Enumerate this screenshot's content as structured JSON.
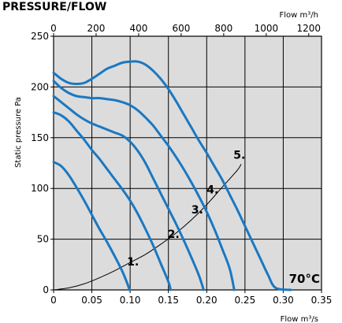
{
  "chart_data": {
    "type": "line",
    "title": "PRESSURE/FLOW",
    "temperature_label": "70°C",
    "ylabel": "Static pressure Pa",
    "xlabel_bottom": "Flow m³/s",
    "xlabel_top": "Flow m³/h",
    "xlim": [
      0,
      0.35
    ],
    "ylim": [
      0,
      250
    ],
    "xlim_top": [
      0,
      1260
    ],
    "grid": true,
    "background_color": "#dcdcdc",
    "curve_color": "#1a78c2",
    "system_curve_color": "#000000",
    "x_ticks": [
      "0",
      "0.05",
      "0.10",
      "0.15",
      "0.20",
      "0.25",
      "0.30",
      "0.35"
    ],
    "x_tick_values": [
      0,
      0.05,
      0.1,
      0.15,
      0.2,
      0.25,
      0.3,
      0.35
    ],
    "y_ticks": [
      "0",
      "50",
      "100",
      "150",
      "200",
      "250"
    ],
    "y_tick_values": [
      0,
      50,
      100,
      150,
      200,
      250
    ],
    "x_top_ticks": [
      "0",
      "200",
      "400",
      "600",
      "800",
      "1000",
      "1200"
    ],
    "x_top_tick_values": [
      0,
      200,
      400,
      600,
      800,
      1000,
      1200
    ],
    "series": [
      {
        "name": "1.",
        "label_at": [
          0.096,
          28
        ],
        "points": [
          [
            0,
            126
          ],
          [
            0.01,
            122
          ],
          [
            0.02,
            113
          ],
          [
            0.03,
            101
          ],
          [
            0.04,
            88
          ],
          [
            0.05,
            74
          ],
          [
            0.06,
            60
          ],
          [
            0.07,
            47
          ],
          [
            0.08,
            33
          ],
          [
            0.09,
            18
          ],
          [
            0.097,
            5
          ],
          [
            0.099,
            0
          ]
        ]
      },
      {
        "name": "2.",
        "label_at": [
          0.149,
          55
        ],
        "points": [
          [
            0,
            175
          ],
          [
            0.01,
            172
          ],
          [
            0.02,
            166
          ],
          [
            0.03,
            157
          ],
          [
            0.04,
            148
          ],
          [
            0.05,
            138
          ],
          [
            0.06,
            129
          ],
          [
            0.07,
            119
          ],
          [
            0.08,
            109
          ],
          [
            0.09,
            99
          ],
          [
            0.1,
            88
          ],
          [
            0.11,
            75
          ],
          [
            0.12,
            60
          ],
          [
            0.13,
            44
          ],
          [
            0.14,
            26
          ],
          [
            0.15,
            8
          ],
          [
            0.153,
            0
          ]
        ]
      },
      {
        "name": "3.",
        "label_at": [
          0.18,
          79
        ],
        "points": [
          [
            0,
            191
          ],
          [
            0.01,
            185
          ],
          [
            0.02,
            179
          ],
          [
            0.03,
            173
          ],
          [
            0.04,
            168
          ],
          [
            0.05,
            164
          ],
          [
            0.06,
            161
          ],
          [
            0.07,
            158
          ],
          [
            0.08,
            155
          ],
          [
            0.09,
            152
          ],
          [
            0.1,
            146
          ],
          [
            0.11,
            137
          ],
          [
            0.12,
            125
          ],
          [
            0.13,
            110
          ],
          [
            0.14,
            95
          ],
          [
            0.15,
            80
          ],
          [
            0.16,
            65
          ],
          [
            0.17,
            49
          ],
          [
            0.18,
            32
          ],
          [
            0.19,
            14
          ],
          [
            0.196,
            0
          ]
        ]
      },
      {
        "name": "4.",
        "label_at": [
          0.2,
          99
        ],
        "points": [
          [
            0,
            206
          ],
          [
            0.01,
            199
          ],
          [
            0.02,
            194
          ],
          [
            0.03,
            191
          ],
          [
            0.04,
            190
          ],
          [
            0.05,
            189
          ],
          [
            0.06,
            189
          ],
          [
            0.07,
            188
          ],
          [
            0.08,
            187
          ],
          [
            0.09,
            185
          ],
          [
            0.1,
            182
          ],
          [
            0.11,
            177
          ],
          [
            0.12,
            170
          ],
          [
            0.13,
            162
          ],
          [
            0.14,
            152
          ],
          [
            0.15,
            142
          ],
          [
            0.16,
            131
          ],
          [
            0.17,
            119
          ],
          [
            0.18,
            106
          ],
          [
            0.19,
            92
          ],
          [
            0.2,
            77
          ],
          [
            0.21,
            60
          ],
          [
            0.22,
            41
          ],
          [
            0.23,
            21
          ],
          [
            0.236,
            0
          ]
        ]
      },
      {
        "name": "5.",
        "label_at": [
          0.235,
          133
        ],
        "points": [
          [
            0,
            214
          ],
          [
            0.01,
            208
          ],
          [
            0.02,
            204
          ],
          [
            0.03,
            203
          ],
          [
            0.04,
            204
          ],
          [
            0.05,
            208
          ],
          [
            0.06,
            213
          ],
          [
            0.07,
            218
          ],
          [
            0.08,
            221
          ],
          [
            0.09,
            224
          ],
          [
            0.1,
            225
          ],
          [
            0.11,
            225
          ],
          [
            0.12,
            222
          ],
          [
            0.13,
            216
          ],
          [
            0.14,
            208
          ],
          [
            0.15,
            198
          ],
          [
            0.16,
            186
          ],
          [
            0.17,
            173
          ],
          [
            0.18,
            160
          ],
          [
            0.19,
            147
          ],
          [
            0.2,
            135
          ],
          [
            0.21,
            122
          ],
          [
            0.22,
            109
          ],
          [
            0.23,
            94
          ],
          [
            0.24,
            79
          ],
          [
            0.25,
            63
          ],
          [
            0.26,
            47
          ],
          [
            0.27,
            31
          ],
          [
            0.28,
            15
          ],
          [
            0.29,
            2
          ],
          [
            0.31,
            0
          ]
        ]
      }
    ],
    "system_curve": {
      "points": [
        [
          0,
          0
        ],
        [
          0.02,
          2
        ],
        [
          0.04,
          6
        ],
        [
          0.06,
          12
        ],
        [
          0.08,
          19
        ],
        [
          0.1,
          27
        ],
        [
          0.12,
          35
        ],
        [
          0.14,
          45
        ],
        [
          0.16,
          56
        ],
        [
          0.18,
          69
        ],
        [
          0.2,
          84
        ],
        [
          0.22,
          101
        ],
        [
          0.24,
          118
        ],
        [
          0.245,
          124
        ]
      ]
    }
  }
}
